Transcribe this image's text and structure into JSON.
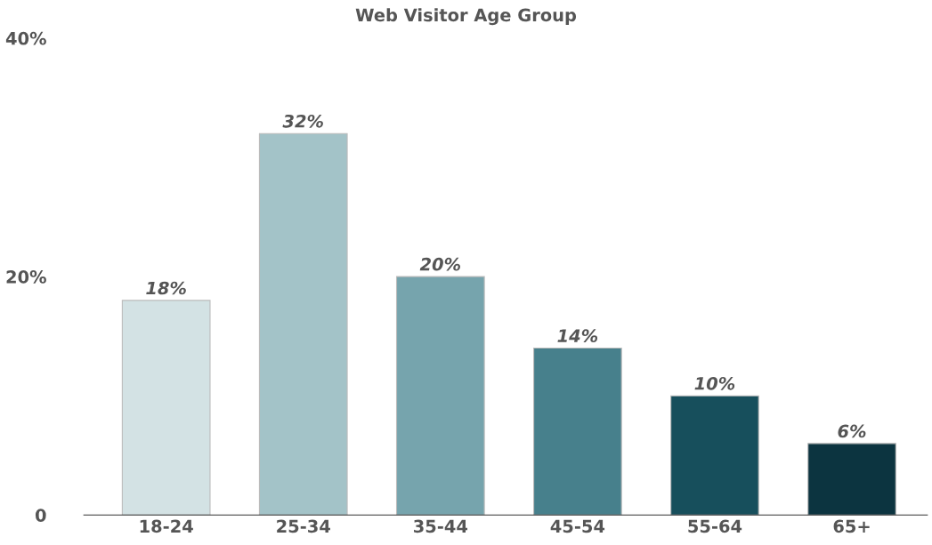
{
  "chart_data": {
    "type": "bar",
    "title": "Web Visitor Age Group",
    "categories": [
      "18-24",
      "25-34",
      "35-44",
      "45-54",
      "55-64",
      "65+"
    ],
    "values": [
      18,
      32,
      20,
      14,
      10,
      6
    ],
    "colors": [
      "#d3e2e4",
      "#a3c3c8",
      "#76a4ad",
      "#47808c",
      "#174f5c",
      "#0c3440"
    ],
    "value_labels": [
      "18%",
      "32%",
      "20%",
      "14%",
      "10%",
      "6%"
    ],
    "ylim": [
      0,
      40
    ],
    "yticks": [
      0,
      {
        "value": 20,
        "label": "20%"
      },
      {
        "value": 40,
        "label": "40%"
      }
    ],
    "grid": false,
    "legend": false
  }
}
